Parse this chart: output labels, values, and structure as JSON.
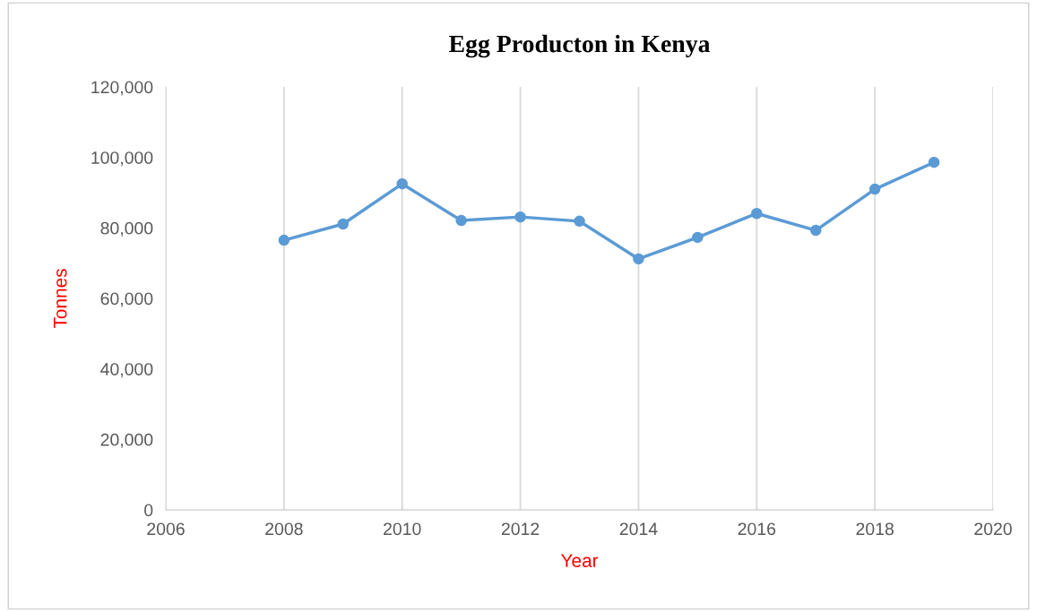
{
  "chart_data": {
    "type": "line",
    "title": "Egg Producton in Kenya",
    "xlabel": "Year",
    "ylabel": "Tonnes",
    "x": [
      2008,
      2009,
      2010,
      2011,
      2012,
      2013,
      2014,
      2015,
      2016,
      2017,
      2018,
      2019
    ],
    "series": [
      {
        "color": "#5b9bd5",
        "values": [
          76500,
          81100,
          92500,
          82100,
          83100,
          81900,
          71200,
          77300,
          84100,
          79300,
          91000,
          98600
        ]
      }
    ],
    "xlim": [
      2006,
      2020
    ],
    "xticks": [
      2006,
      2008,
      2010,
      2012,
      2014,
      2016,
      2018,
      2020
    ],
    "ylim": [
      0,
      120000
    ],
    "yticks": [
      {
        "value": 0,
        "label": "0"
      },
      {
        "value": 20000,
        "label": "20,000"
      },
      {
        "value": 40000,
        "label": "40,000"
      },
      {
        "value": 60000,
        "label": "60,000"
      },
      {
        "value": 80000,
        "label": "80,000"
      },
      {
        "value": 100000,
        "label": "100,000"
      },
      {
        "value": 120000,
        "label": "120,000"
      }
    ],
    "grid": "x",
    "marker": "circle",
    "line_style": "solid"
  }
}
